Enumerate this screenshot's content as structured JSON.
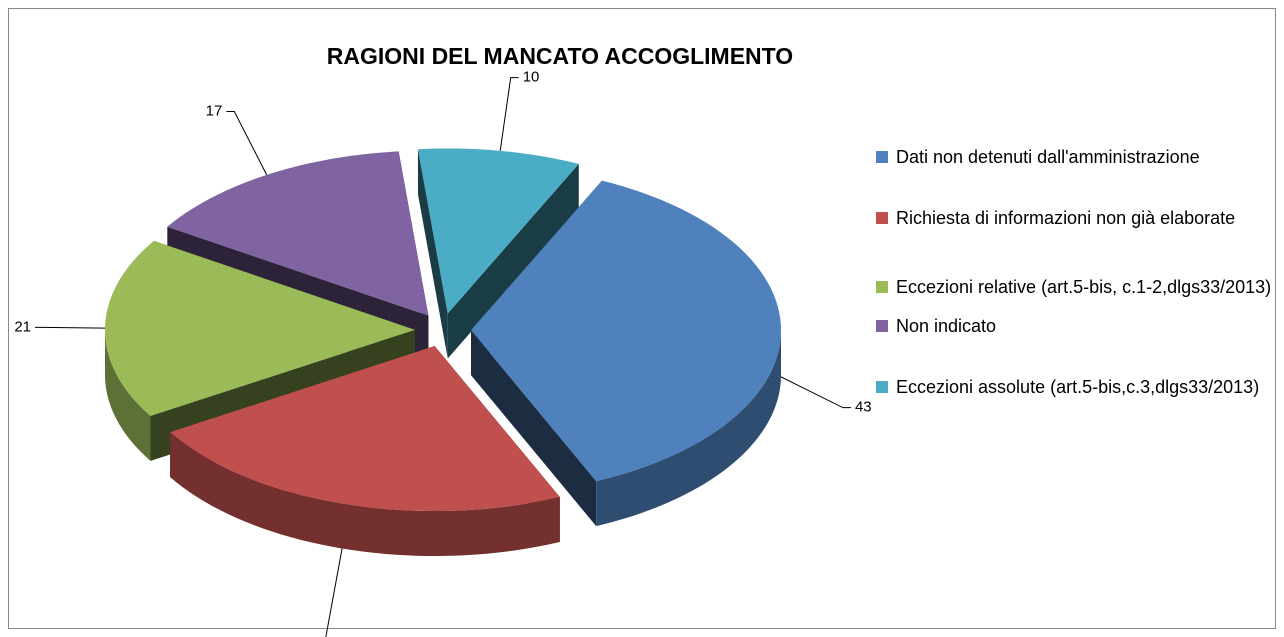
{
  "chart_data": {
    "type": "pie3d",
    "title": "RAGIONI DEL MANCATO ACCOGLIMENTO",
    "categories": [
      "Dati non detenuti dall'amministrazione",
      "Richiesta di informazioni non già elaborate",
      "Eccezioni relative (art.5-bis, c.1-2,dlgs33/2013)",
      "Non indicato",
      "Eccezioni assolute (art.5-bis,c.3,dlgs33/2013)"
    ],
    "values": [
      43,
      27,
      21,
      17,
      10
    ],
    "colors": [
      "#4f81bd",
      "#c0504d",
      "#9bbb59",
      "#8064a2",
      "#4bacc6"
    ],
    "legend": "right"
  }
}
